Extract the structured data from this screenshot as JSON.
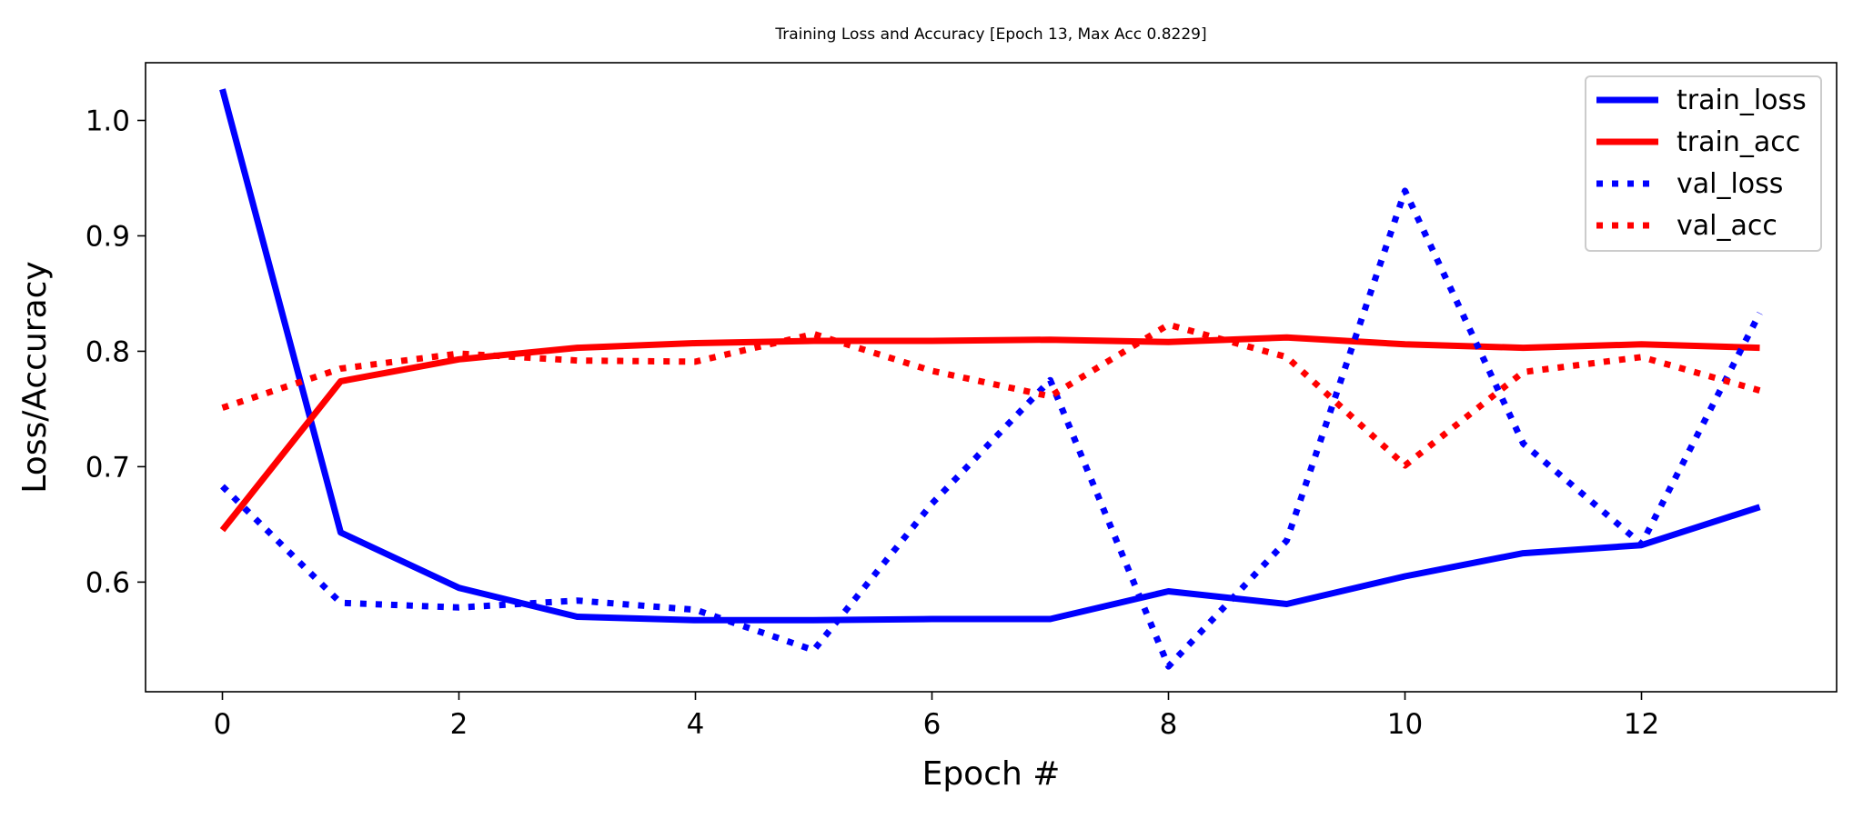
{
  "chart_data": {
    "type": "line",
    "title": "Training Loss and Accuracy [Epoch 13, Max Acc 0.8229]",
    "xlabel": "Epoch #",
    "ylabel": "Loss/Accuracy",
    "xlim": [
      -0.65,
      13.65
    ],
    "ylim": [
      0.505,
      1.05
    ],
    "xticks": [
      0,
      2,
      4,
      6,
      8,
      10,
      12
    ],
    "yticks": [
      0.6,
      0.7,
      0.8,
      0.9,
      1.0
    ],
    "ytick_labels": [
      "0.6",
      "0.7",
      "0.8",
      "0.9",
      "1.0"
    ],
    "grid": false,
    "legend_position": "top-right",
    "x": [
      0,
      1,
      2,
      3,
      4,
      5,
      6,
      7,
      8,
      9,
      10,
      11,
      12,
      13
    ],
    "series": [
      {
        "name": "train_loss",
        "color": "#0000ff",
        "style": "solid",
        "values": [
          1.027,
          0.643,
          0.595,
          0.57,
          0.567,
          0.567,
          0.568,
          0.568,
          0.592,
          0.581,
          0.605,
          0.625,
          0.632,
          0.665
        ]
      },
      {
        "name": "train_acc",
        "color": "#ff0000",
        "style": "solid",
        "values": [
          0.645,
          0.774,
          0.793,
          0.803,
          0.807,
          0.809,
          0.809,
          0.81,
          0.808,
          0.812,
          0.806,
          0.803,
          0.806,
          0.803
        ]
      },
      {
        "name": "val_loss",
        "color": "#0000ff",
        "style": "dotted",
        "values": [
          0.683,
          0.582,
          0.578,
          0.584,
          0.576,
          0.541,
          0.668,
          0.775,
          0.527,
          0.636,
          0.939,
          0.72,
          0.633,
          0.833
        ]
      },
      {
        "name": "val_acc",
        "color": "#ff0000",
        "style": "dotted",
        "values": [
          0.751,
          0.785,
          0.798,
          0.792,
          0.791,
          0.815,
          0.783,
          0.761,
          0.823,
          0.795,
          0.701,
          0.782,
          0.795,
          0.766
        ]
      }
    ]
  }
}
